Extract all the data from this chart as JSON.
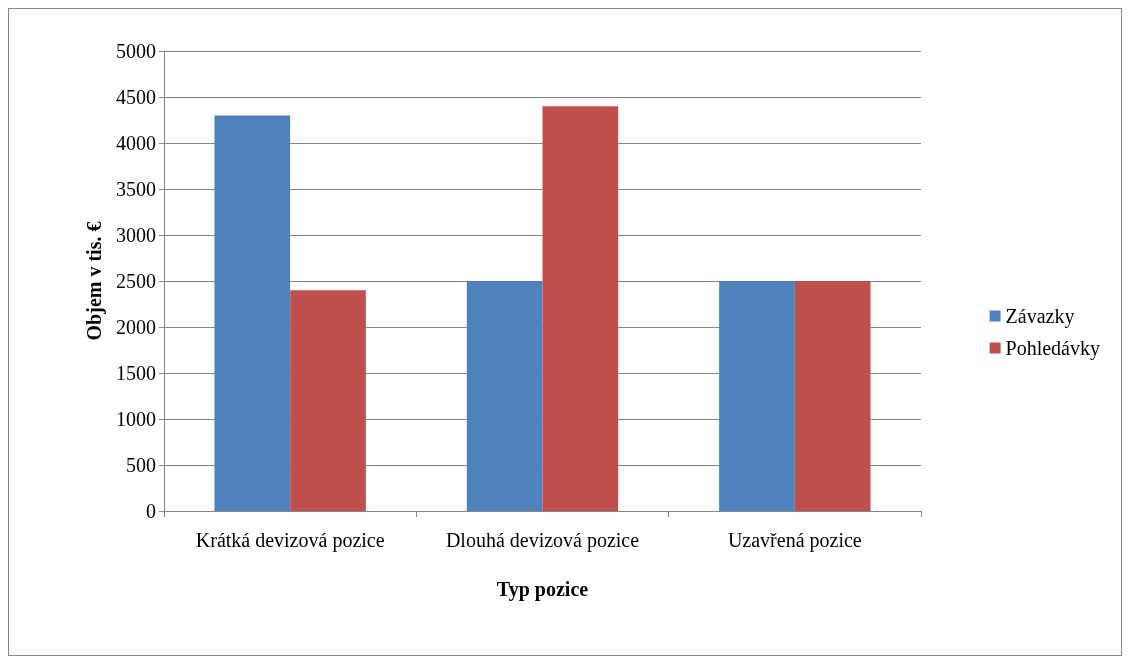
{
  "chart_data": {
    "type": "bar",
    "xlabel": "Typ pozice",
    "ylabel": "Objem v tis. €",
    "categories": [
      "Krátká devizová pozice",
      "Dlouhá devizová pozice",
      "Uzavřená pozice"
    ],
    "series": [
      {
        "name": "Závazky",
        "color": "#4f81bd",
        "values": [
          4300,
          2500,
          2500
        ]
      },
      {
        "name": "Pohledávky",
        "color": "#c0504d",
        "values": [
          2400,
          4400,
          2500
        ]
      }
    ],
    "ylim": [
      0,
      5000
    ],
    "yticks": [
      0,
      500,
      1000,
      1500,
      2000,
      2500,
      3000,
      3500,
      4000,
      4500,
      5000
    ],
    "grid": "y",
    "legend": "right"
  }
}
